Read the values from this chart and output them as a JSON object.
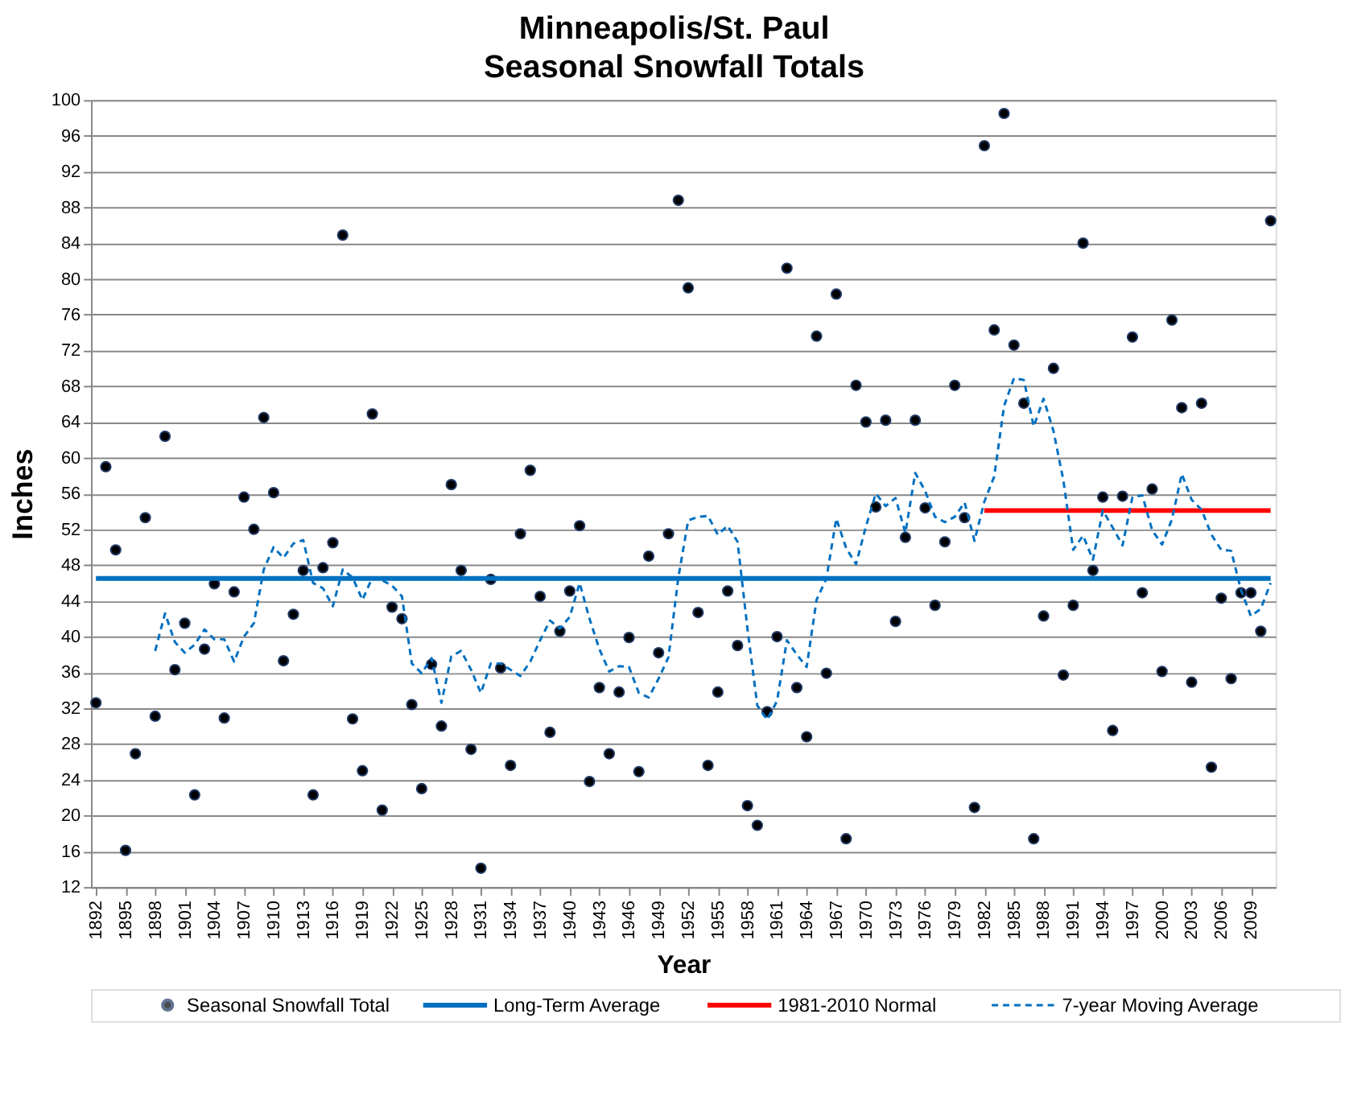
{
  "chart_data": {
    "type": "scatter",
    "title": "Minneapolis/St. Paul\nSeasonal Snowfall Totals",
    "xlabel": "Year",
    "ylabel": "Inches",
    "x": [
      1892,
      1893,
      1894,
      1895,
      1896,
      1897,
      1898,
      1899,
      1900,
      1901,
      1902,
      1903,
      1904,
      1905,
      1906,
      1907,
      1908,
      1909,
      1910,
      1911,
      1912,
      1913,
      1914,
      1915,
      1916,
      1917,
      1918,
      1919,
      1920,
      1921,
      1922,
      1923,
      1924,
      1925,
      1926,
      1927,
      1928,
      1929,
      1930,
      1931,
      1932,
      1933,
      1934,
      1935,
      1936,
      1937,
      1938,
      1939,
      1940,
      1941,
      1942,
      1943,
      1944,
      1945,
      1946,
      1947,
      1948,
      1949,
      1950,
      1951,
      1952,
      1953,
      1954,
      1955,
      1956,
      1957,
      1958,
      1959,
      1960,
      1961,
      1962,
      1963,
      1964,
      1965,
      1966,
      1967,
      1968,
      1969,
      1970,
      1971,
      1972,
      1973,
      1974,
      1975,
      1976,
      1977,
      1978,
      1979,
      1980,
      1981,
      1982,
      1983,
      1984,
      1985,
      1986,
      1987,
      1988,
      1989,
      1990,
      1991,
      1992,
      1993,
      1994,
      1995,
      1996,
      1997,
      1998,
      1999,
      2000,
      2001,
      2002,
      2003,
      2004,
      2005,
      2006,
      2007,
      2008,
      2009,
      2010,
      2011
    ],
    "series": [
      {
        "name": "Seasonal Snowfall Total",
        "marker": "circle",
        "color": "#000000",
        "values": [
          32.6,
          59.0,
          49.7,
          16.1,
          26.9,
          53.3,
          31.1,
          62.4,
          36.3,
          41.5,
          22.3,
          38.6,
          45.9,
          30.9,
          45.0,
          55.6,
          52.0,
          64.5,
          56.1,
          37.3,
          42.5,
          47.4,
          22.3,
          47.7,
          50.5,
          84.9,
          30.8,
          25.0,
          64.9,
          20.6,
          43.3,
          42.0,
          32.4,
          23.0,
          36.9,
          30.0,
          57.0,
          47.4,
          27.4,
          14.1,
          46.4,
          36.5,
          25.6,
          51.5,
          58.6,
          44.5,
          29.3,
          40.6,
          45.1,
          52.4,
          23.8,
          34.3,
          26.9,
          33.8,
          39.9,
          24.9,
          49.0,
          38.2,
          51.5,
          88.8,
          79.0,
          42.7,
          25.6,
          33.8,
          45.1,
          39.0,
          21.1,
          18.9,
          31.6,
          40.0,
          81.2,
          34.3,
          28.8,
          73.6,
          35.9,
          78.3,
          17.4,
          68.1,
          64.0,
          54.5,
          64.2,
          41.7,
          51.1,
          64.2,
          54.4,
          43.5,
          50.6,
          68.1,
          53.3,
          20.9,
          94.9,
          74.3,
          98.5,
          72.6,
          66.1,
          17.4,
          42.3,
          70.0,
          35.7,
          43.5,
          84.0,
          47.4,
          55.6,
          29.5,
          55.7,
          73.5,
          44.9,
          56.5,
          36.1,
          75.4,
          65.6,
          34.9,
          66.1,
          25.4,
          44.3,
          35.3,
          44.9,
          44.9,
          40.6,
          86.5
        ]
      },
      {
        "name": "Long-Term Average",
        "type": "line",
        "color": "#0070c0",
        "line_style": "solid",
        "x": [
          1892,
          2011
        ],
        "values": [
          46.5,
          46.5
        ]
      },
      {
        "name": "1981-2010 Normal",
        "type": "line",
        "color": "#ff0000",
        "line_style": "solid",
        "x": [
          1982,
          2011
        ],
        "values": [
          54.1,
          54.1
        ]
      },
      {
        "name": "7-year Moving Average",
        "type": "line",
        "color": "#0070c0",
        "line_style": "dashed",
        "x": [
          1898,
          1899,
          1900,
          1901,
          1902,
          1903,
          1904,
          1905,
          1906,
          1907,
          1908,
          1909,
          1910,
          1911,
          1912,
          1913,
          1914,
          1915,
          1916,
          1917,
          1918,
          1919,
          1920,
          1921,
          1922,
          1923,
          1924,
          1925,
          1926,
          1927,
          1928,
          1929,
          1930,
          1931,
          1932,
          1933,
          1934,
          1935,
          1936,
          1937,
          1938,
          1939,
          1940,
          1941,
          1942,
          1943,
          1944,
          1945,
          1946,
          1947,
          1948,
          1949,
          1950,
          1951,
          1952,
          1953,
          1954,
          1955,
          1956,
          1957,
          1958,
          1959,
          1960,
          1961,
          1962,
          1963,
          1964,
          1965,
          1966,
          1967,
          1968,
          1969,
          1970,
          1971,
          1972,
          1973,
          1974,
          1975,
          1976,
          1977,
          1978,
          1979,
          1980,
          1981,
          1982,
          1983,
          1984,
          1985,
          1986,
          1987,
          1988,
          1989,
          1990,
          1991,
          1992,
          1993,
          1994,
          1995,
          1996,
          1997,
          1998,
          1999,
          2000,
          2001,
          2002,
          2003,
          2004,
          2005,
          2006,
          2007,
          2008,
          2009,
          2010,
          2011
        ],
        "values": [
          38.4,
          42.6,
          39.4,
          38.2,
          39.1,
          40.8,
          39.7,
          39.7,
          37.2,
          40.0,
          41.5,
          47.5,
          50.0,
          48.8,
          50.4,
          50.8,
          46.0,
          45.4,
          43.4,
          47.5,
          46.6,
          44.1,
          46.6,
          46.3,
          45.7,
          44.5,
          37.0,
          35.9,
          37.6,
          32.6,
          37.8,
          38.4,
          36.3,
          33.7,
          37.0,
          37.0,
          36.3,
          35.6,
          37.2,
          39.6,
          41.8,
          40.9,
          42.2,
          46.0,
          42.0,
          38.6,
          36.1,
          36.7,
          36.6,
          33.7,
          33.2,
          35.3,
          37.7,
          46.6,
          53.0,
          53.4,
          53.5,
          51.4,
          52.4,
          50.6,
          40.9,
          32.3,
          30.7,
          32.8,
          39.6,
          38.0,
          36.6,
          44.1,
          46.5,
          53.2,
          49.9,
          48.1,
          52.3,
          56.0,
          54.6,
          55.5,
          51.6,
          58.3,
          56.3,
          53.4,
          52.8,
          53.4,
          55.0,
          50.7,
          55.1,
          57.9,
          65.8,
          68.9,
          68.7,
          63.5,
          66.6,
          63.0,
          57.5,
          49.7,
          51.3,
          48.6,
          54.1,
          52.2,
          50.2,
          55.6,
          55.8,
          51.9,
          50.3,
          53.1,
          58.2,
          55.3,
          54.2,
          51.4,
          49.7,
          49.6,
          45.2,
          42.3,
          43.1,
          46.0
        ]
      }
    ],
    "xlim": [
      1891.5,
      2011.5
    ],
    "xticks": [
      1892,
      1895,
      1898,
      1901,
      1904,
      1907,
      1910,
      1913,
      1916,
      1919,
      1922,
      1925,
      1928,
      1931,
      1934,
      1937,
      1940,
      1943,
      1946,
      1949,
      1952,
      1955,
      1958,
      1961,
      1964,
      1967,
      1970,
      1973,
      1976,
      1979,
      1982,
      1985,
      1988,
      1991,
      1994,
      1997,
      2000,
      2003,
      2006,
      2009
    ],
    "ylim": [
      12,
      100
    ],
    "yticks": [
      12,
      16,
      20,
      24,
      28,
      32,
      36,
      40,
      44,
      48,
      52,
      56,
      60,
      64,
      68,
      72,
      76,
      80,
      84,
      88,
      92,
      96,
      100
    ],
    "grid": "y",
    "legend": "bottom"
  }
}
